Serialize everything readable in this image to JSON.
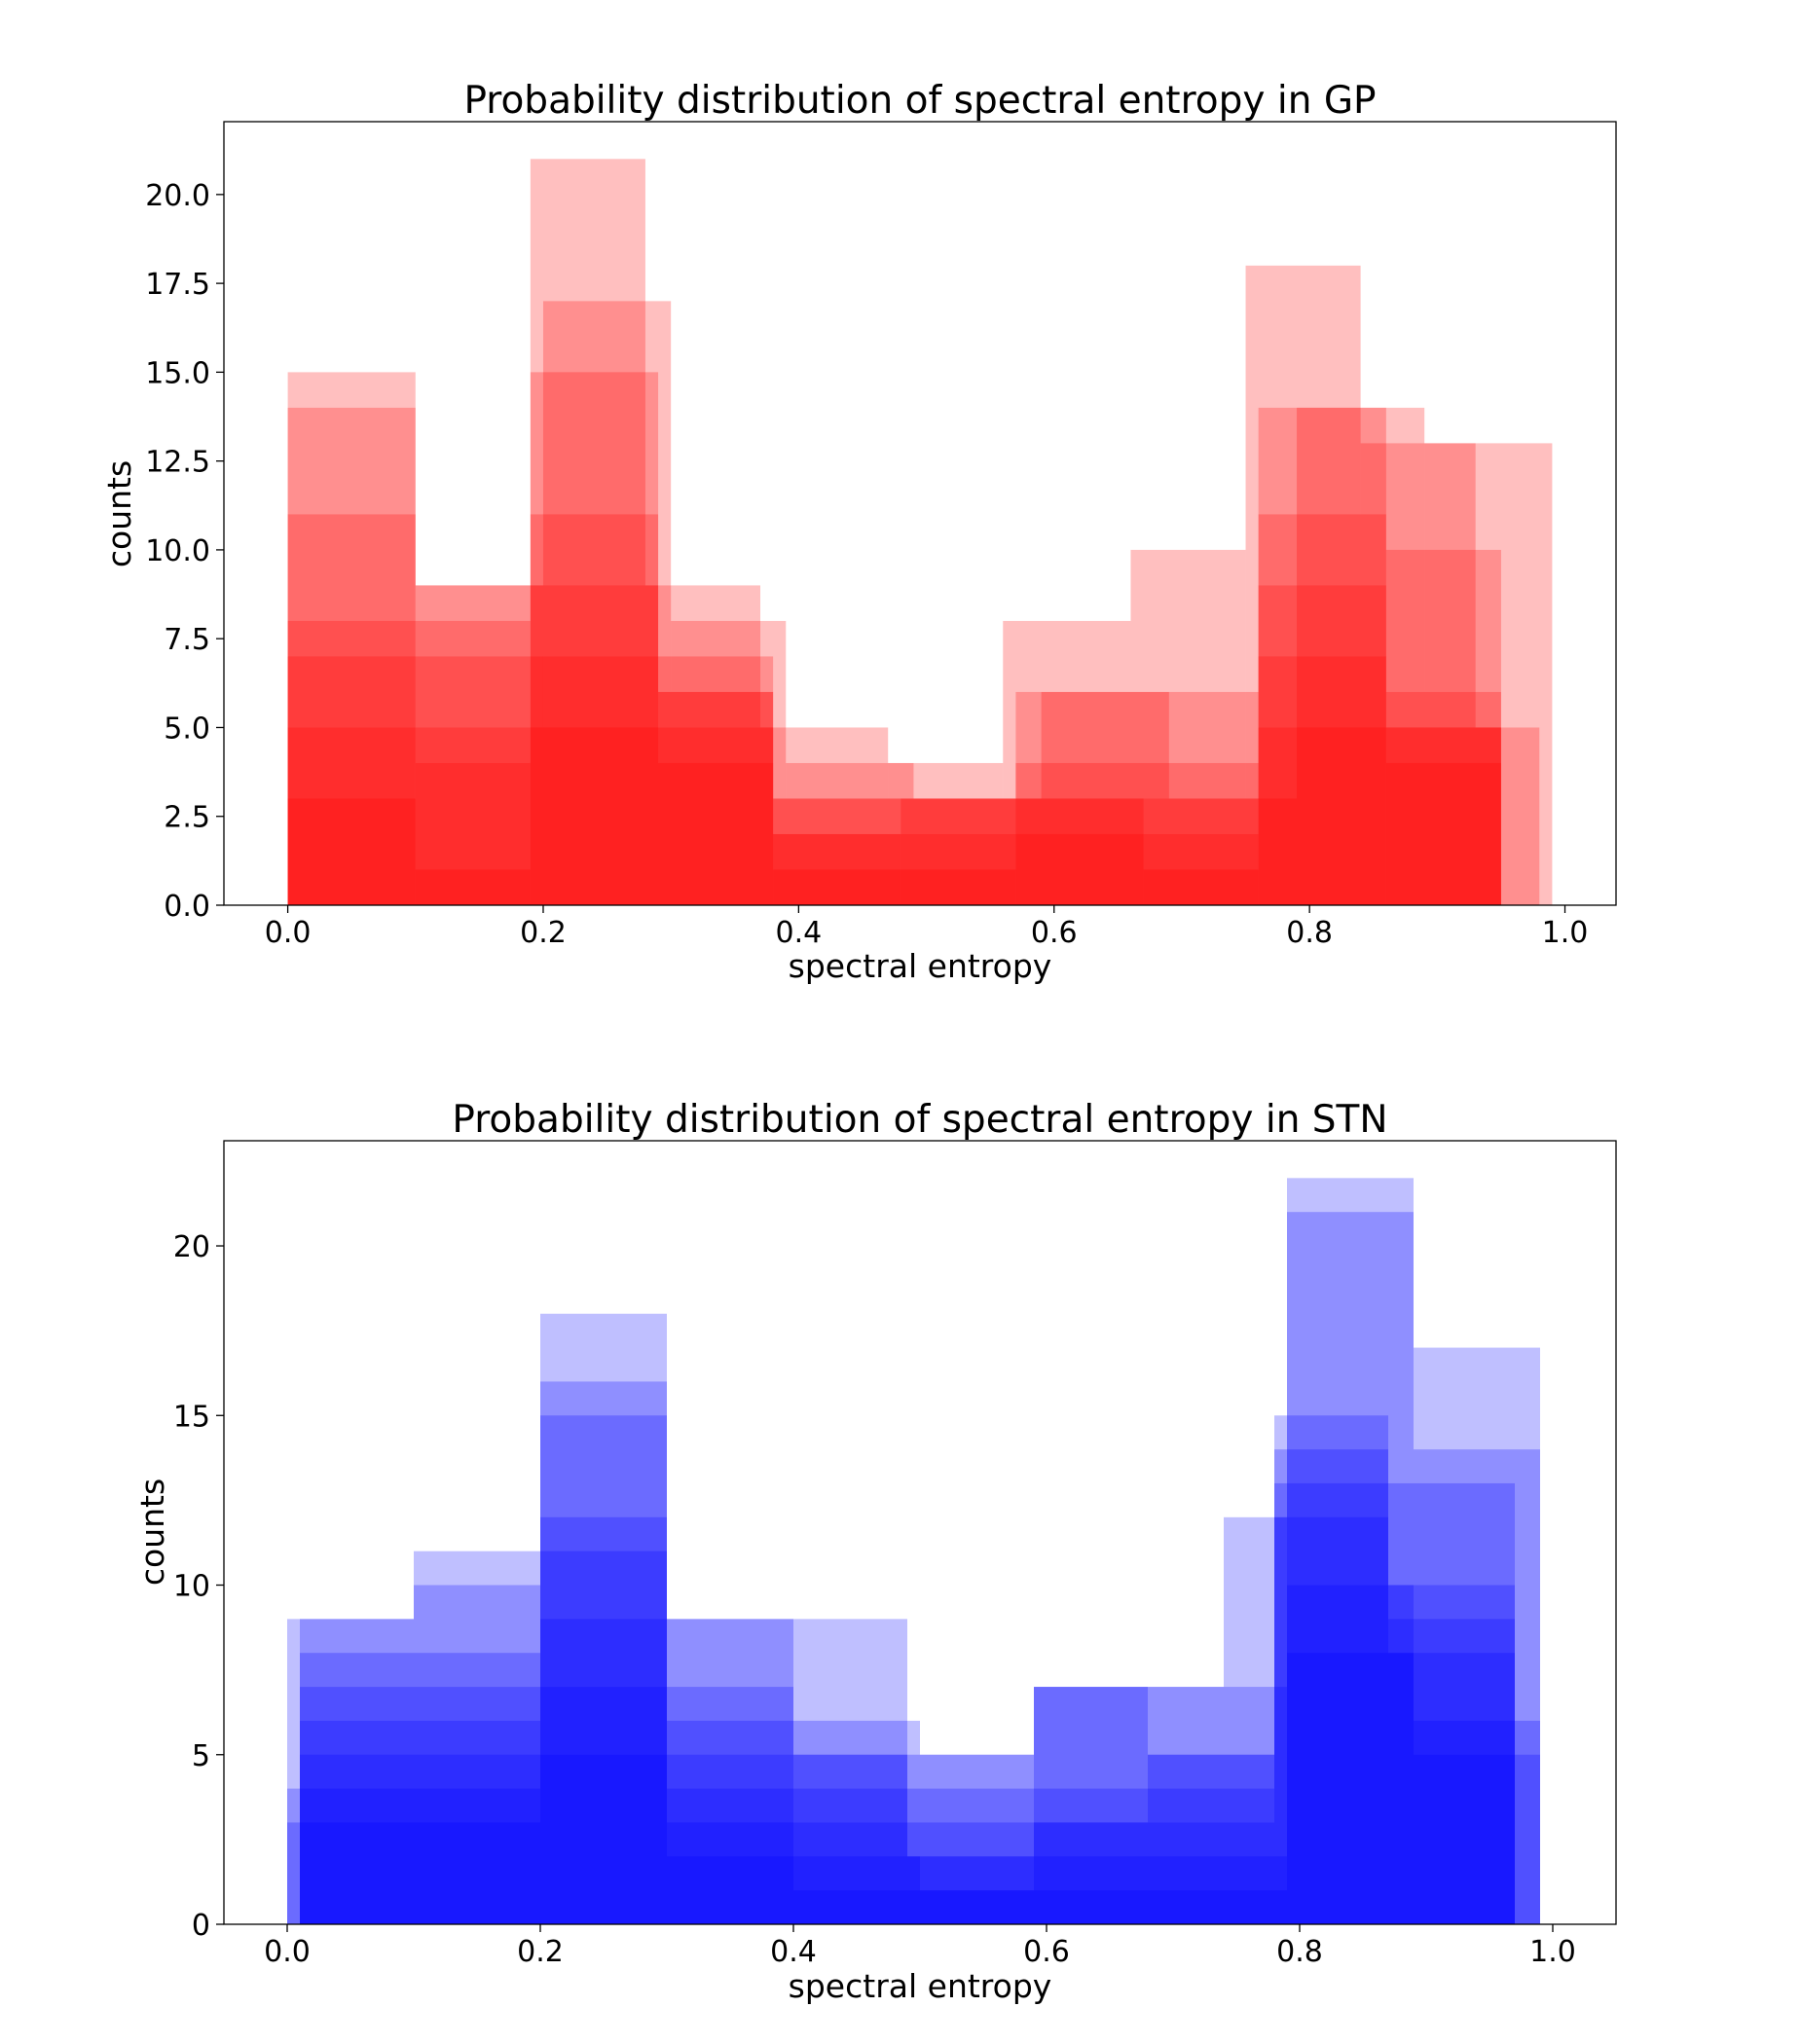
{
  "chart_data": [
    {
      "type": "bar",
      "subtype": "overlapping-histograms",
      "title": "Probability distribution of spectral entropy in GP",
      "xlabel": "spectral entropy",
      "ylabel": "counts",
      "xlim": [
        -0.05,
        1.04
      ],
      "ylim": [
        0,
        22.05
      ],
      "x_ticks": [
        "0.0",
        "0.2",
        "0.4",
        "0.6",
        "0.8",
        "1.0"
      ],
      "y_ticks": [
        "0.0",
        "2.5",
        "5.0",
        "7.5",
        "10.0",
        "12.5",
        "15.0",
        "17.5",
        "20.0"
      ],
      "color": "#ff0000",
      "alpha": 0.25,
      "series": [
        {
          "bins": [
            [
              0.0,
              0.1,
              15
            ],
            [
              0.1,
              0.19,
              1
            ],
            [
              0.19,
              0.28,
              21
            ],
            [
              0.28,
              0.37,
              9
            ],
            [
              0.37,
              0.47,
              5
            ],
            [
              0.47,
              0.56,
              4
            ],
            [
              0.56,
              0.66,
              8
            ],
            [
              0.66,
              0.75,
              10
            ],
            [
              0.75,
              0.84,
              18
            ],
            [
              0.84,
              0.93,
              13
            ],
            [
              0.93,
              0.98,
              5
            ]
          ]
        },
        {
          "bins": [
            [
              0.0,
              0.1,
              14
            ],
            [
              0.1,
              0.2,
              9
            ],
            [
              0.2,
              0.3,
              17
            ],
            [
              0.3,
              0.39,
              8
            ],
            [
              0.39,
              0.49,
              4
            ],
            [
              0.49,
              0.59,
              3
            ],
            [
              0.59,
              0.69,
              6
            ],
            [
              0.69,
              0.79,
              3
            ],
            [
              0.79,
              0.89,
              14
            ],
            [
              0.89,
              0.99,
              13
            ]
          ]
        },
        {
          "bins": [
            [
              0.0,
              0.1,
              11
            ],
            [
              0.1,
              0.19,
              9
            ],
            [
              0.19,
              0.29,
              15
            ],
            [
              0.29,
              0.38,
              7
            ],
            [
              0.38,
              0.48,
              3
            ],
            [
              0.48,
              0.57,
              3
            ],
            [
              0.57,
              0.67,
              6
            ],
            [
              0.67,
              0.76,
              1
            ],
            [
              0.76,
              0.86,
              14
            ],
            [
              0.86,
              0.95,
              10
            ]
          ]
        },
        {
          "bins": [
            [
              0.0,
              0.1,
              8
            ],
            [
              0.1,
              0.19,
              8
            ],
            [
              0.19,
              0.29,
              11
            ],
            [
              0.29,
              0.38,
              6
            ],
            [
              0.38,
              0.48,
              3
            ],
            [
              0.48,
              0.57,
              3
            ],
            [
              0.57,
              0.67,
              3
            ],
            [
              0.67,
              0.76,
              6
            ],
            [
              0.76,
              0.86,
              11
            ],
            [
              0.86,
              0.95,
              6
            ]
          ]
        },
        {
          "bins": [
            [
              0.0,
              0.1,
              7
            ],
            [
              0.1,
              0.19,
              7
            ],
            [
              0.19,
              0.29,
              9
            ],
            [
              0.29,
              0.38,
              6
            ],
            [
              0.38,
              0.48,
              2
            ],
            [
              0.48,
              0.57,
              3
            ],
            [
              0.57,
              0.67,
              4
            ],
            [
              0.67,
              0.76,
              4
            ],
            [
              0.76,
              0.86,
              9
            ],
            [
              0.86,
              0.95,
              5
            ]
          ]
        },
        {
          "bins": [
            [
              0.0,
              0.1,
              5
            ],
            [
              0.1,
              0.19,
              5
            ],
            [
              0.19,
              0.29,
              7
            ],
            [
              0.29,
              0.38,
              5
            ],
            [
              0.38,
              0.48,
              2
            ],
            [
              0.48,
              0.57,
              2
            ],
            [
              0.57,
              0.67,
              3
            ],
            [
              0.67,
              0.76,
              3
            ],
            [
              0.76,
              0.86,
              7
            ],
            [
              0.86,
              0.95,
              5
            ]
          ]
        },
        {
          "bins": [
            [
              0.0,
              0.1,
              3
            ],
            [
              0.1,
              0.19,
              4
            ],
            [
              0.19,
              0.29,
              5
            ],
            [
              0.29,
              0.38,
              4
            ],
            [
              0.38,
              0.48,
              1
            ],
            [
              0.48,
              0.57,
              1
            ],
            [
              0.57,
              0.67,
              2
            ],
            [
              0.67,
              0.76,
              2
            ],
            [
              0.76,
              0.86,
              5
            ],
            [
              0.86,
              0.95,
              4
            ]
          ]
        }
      ]
    },
    {
      "type": "bar",
      "subtype": "overlapping-histograms",
      "title": "Probability distribution of spectral entropy in STN",
      "xlabel": "spectral entropy",
      "ylabel": "counts",
      "xlim": [
        -0.05,
        1.05
      ],
      "ylim": [
        0,
        23.1
      ],
      "x_ticks": [
        "0.0",
        "0.2",
        "0.4",
        "0.6",
        "0.8",
        "1.0"
      ],
      "y_ticks": [
        "0",
        "5",
        "10",
        "15",
        "20"
      ],
      "color": "#0000ff",
      "alpha": 0.25,
      "series": [
        {
          "bins": [
            [
              0.0,
              0.1,
              9
            ],
            [
              0.1,
              0.2,
              11
            ],
            [
              0.2,
              0.3,
              18
            ],
            [
              0.3,
              0.4,
              9
            ],
            [
              0.4,
              0.49,
              9
            ],
            [
              0.49,
              0.59,
              5
            ],
            [
              0.59,
              0.69,
              7
            ],
            [
              0.69,
              0.74,
              7
            ],
            [
              0.74,
              0.79,
              12
            ],
            [
              0.79,
              0.89,
              22
            ],
            [
              0.89,
              0.99,
              17
            ]
          ]
        },
        {
          "bins": [
            [
              0.01,
              0.1,
              9
            ],
            [
              0.1,
              0.2,
              10
            ],
            [
              0.2,
              0.3,
              16
            ],
            [
              0.3,
              0.4,
              9
            ],
            [
              0.4,
              0.5,
              6
            ],
            [
              0.5,
              0.59,
              5
            ],
            [
              0.59,
              0.69,
              7
            ],
            [
              0.69,
              0.79,
              7
            ],
            [
              0.79,
              0.89,
              21
            ],
            [
              0.89,
              0.99,
              14
            ]
          ]
        },
        {
          "bins": [
            [
              0.01,
              0.11,
              8
            ],
            [
              0.11,
              0.2,
              8
            ],
            [
              0.2,
              0.3,
              15
            ],
            [
              0.3,
              0.4,
              7
            ],
            [
              0.4,
              0.49,
              5
            ],
            [
              0.49,
              0.59,
              4
            ],
            [
              0.59,
              0.68,
              7
            ],
            [
              0.68,
              0.78,
              5
            ],
            [
              0.78,
              0.87,
              15
            ],
            [
              0.87,
              0.97,
              13
            ]
          ]
        },
        {
          "bins": [
            [
              0.01,
              0.11,
              7
            ],
            [
              0.11,
              0.2,
              7
            ],
            [
              0.2,
              0.3,
              12
            ],
            [
              0.3,
              0.4,
              6
            ],
            [
              0.4,
              0.49,
              5
            ],
            [
              0.49,
              0.59,
              3
            ],
            [
              0.59,
              0.68,
              4
            ],
            [
              0.68,
              0.78,
              5
            ],
            [
              0.78,
              0.87,
              14
            ],
            [
              0.87,
              0.97,
              10
            ]
          ]
        },
        {
          "bins": [
            [
              0.01,
              0.11,
              6
            ],
            [
              0.11,
              0.2,
              6
            ],
            [
              0.2,
              0.3,
              11
            ],
            [
              0.3,
              0.4,
              5
            ],
            [
              0.4,
              0.49,
              4
            ],
            [
              0.49,
              0.59,
              2
            ],
            [
              0.59,
              0.68,
              3
            ],
            [
              0.68,
              0.78,
              4
            ],
            [
              0.78,
              0.87,
              13
            ],
            [
              0.87,
              0.97,
              9
            ]
          ]
        },
        {
          "bins": [
            [
              0.01,
              0.11,
              5
            ],
            [
              0.11,
              0.2,
              5
            ],
            [
              0.2,
              0.3,
              9
            ],
            [
              0.3,
              0.4,
              4
            ],
            [
              0.4,
              0.49,
              3
            ],
            [
              0.49,
              0.59,
              2
            ],
            [
              0.59,
              0.68,
              3
            ],
            [
              0.68,
              0.78,
              3
            ],
            [
              0.78,
              0.87,
              12
            ],
            [
              0.87,
              0.97,
              8
            ]
          ]
        },
        {
          "bins": [
            [
              0.0,
              0.1,
              4
            ],
            [
              0.1,
              0.2,
              4
            ],
            [
              0.2,
              0.3,
              7
            ],
            [
              0.3,
              0.4,
              3
            ],
            [
              0.4,
              0.5,
              2
            ],
            [
              0.5,
              0.59,
              1
            ],
            [
              0.59,
              0.69,
              2
            ],
            [
              0.69,
              0.79,
              2
            ],
            [
              0.79,
              0.89,
              10
            ],
            [
              0.89,
              0.99,
              6
            ]
          ]
        },
        {
          "bins": [
            [
              0.0,
              0.1,
              3
            ],
            [
              0.1,
              0.2,
              3
            ],
            [
              0.2,
              0.3,
              5
            ],
            [
              0.3,
              0.4,
              2
            ],
            [
              0.4,
              0.5,
              1
            ],
            [
              0.5,
              0.59,
              1
            ],
            [
              0.59,
              0.69,
              1
            ],
            [
              0.69,
              0.79,
              1
            ],
            [
              0.79,
              0.89,
              8
            ],
            [
              0.89,
              0.99,
              5
            ]
          ]
        }
      ]
    }
  ]
}
